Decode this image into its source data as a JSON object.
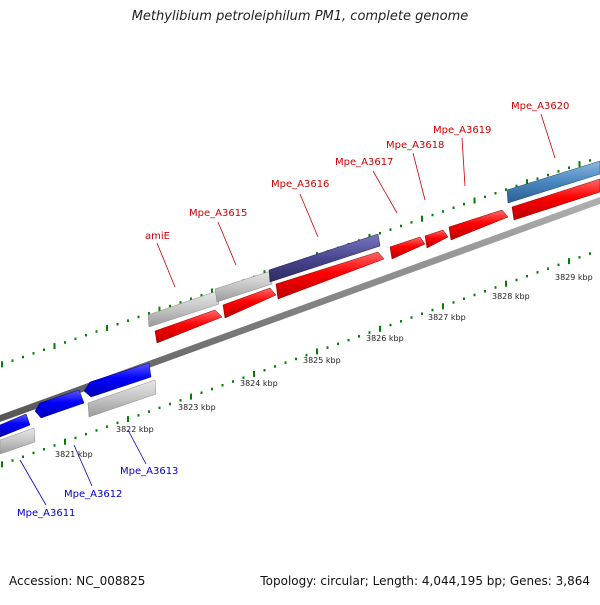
{
  "title": "Methylibium petroleiphilum PM1, complete genome",
  "accession": "Accession: NC_008825",
  "summary": "Topology: circular; Length: 4,044,195 bp; Genes: 3,864",
  "colors": {
    "forward_gene": "#ff0000",
    "reverse_gene": "#0000ff",
    "forward_label": "#cc0000",
    "reverse_label": "#0000cc",
    "other_feature": "#c0c0c0",
    "purple_feature": "#4a4690",
    "steel_feature": "#4a86bf",
    "backbone": "#808080",
    "tick": "#008000"
  },
  "ruler": [
    {
      "pos": 3821,
      "label": "3821 kbp"
    },
    {
      "pos": 3822,
      "label": "3822 kbp"
    },
    {
      "pos": 3823,
      "label": "3823 kbp"
    },
    {
      "pos": 3824,
      "label": "3824 kbp"
    },
    {
      "pos": 3825,
      "label": "3825 kbp"
    },
    {
      "pos": 3826,
      "label": "3826 kbp"
    },
    {
      "pos": 3827,
      "label": "3827 kbp"
    },
    {
      "pos": 3828,
      "label": "3828 kbp"
    },
    {
      "pos": 3829,
      "label": "3829 kbp"
    }
  ],
  "gene_labels": [
    {
      "name": "Mpe_A3611",
      "strand": "reverse"
    },
    {
      "name": "Mpe_A3612",
      "strand": "reverse"
    },
    {
      "name": "Mpe_A3613",
      "strand": "reverse"
    },
    {
      "name": "amiE",
      "strand": "forward"
    },
    {
      "name": "Mpe_A3615",
      "strand": "forward"
    },
    {
      "name": "Mpe_A3616",
      "strand": "forward"
    },
    {
      "name": "Mpe_A3617",
      "strand": "forward"
    },
    {
      "name": "Mpe_A3618",
      "strand": "forward"
    },
    {
      "name": "Mpe_A3619",
      "strand": "forward"
    },
    {
      "name": "Mpe_A3620",
      "strand": "forward"
    }
  ]
}
